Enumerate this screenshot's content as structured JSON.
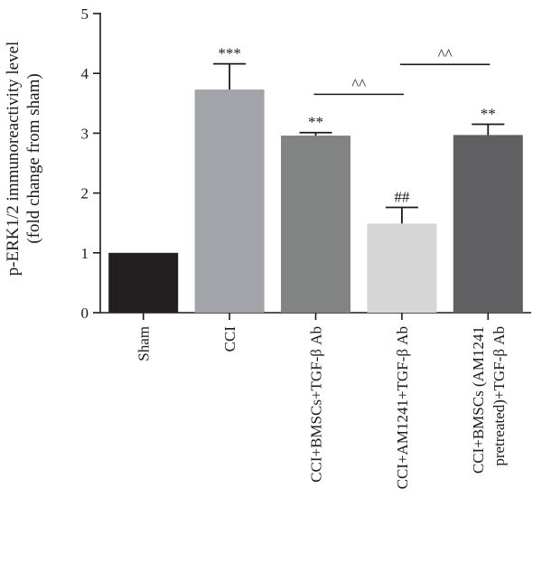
{
  "chart_data": {
    "type": "bar",
    "title": "",
    "ylabel_lines": [
      "p-ERK1/2 immunoreactivity level",
      "(fold change from sham)"
    ],
    "xlabel": "",
    "ylim": [
      0,
      5
    ],
    "yticks": [
      0,
      1,
      2,
      3,
      4,
      5
    ],
    "grid": false,
    "categories": [
      {
        "label_lines": [
          "Sham"
        ]
      },
      {
        "label_lines": [
          "CCI"
        ]
      },
      {
        "label_lines": [
          "CCI+BMSCs+TGF-β Ab"
        ]
      },
      {
        "label_lines": [
          "CCI+AM1241+TGF-β Ab"
        ]
      },
      {
        "label_lines": [
          "CCI+BMSCs (AM1241",
          "pretreated)+TGF-β  Ab"
        ]
      }
    ],
    "values": [
      1.0,
      3.73,
      2.96,
      1.49,
      2.97
    ],
    "errors": [
      0,
      0.43,
      0.05,
      0.27,
      0.18
    ],
    "colors": [
      "#231f20",
      "#a2a4aa",
      "#828383",
      "#d6d6d6",
      "#606062"
    ],
    "annotations": [
      "",
      "***",
      "**",
      "##",
      "**"
    ],
    "brackets": [
      {
        "from": 2,
        "to": 3,
        "label": "^^",
        "y": 3.65
      },
      {
        "from": 3,
        "to": 4,
        "label": "^^",
        "y": 4.15
      }
    ]
  }
}
